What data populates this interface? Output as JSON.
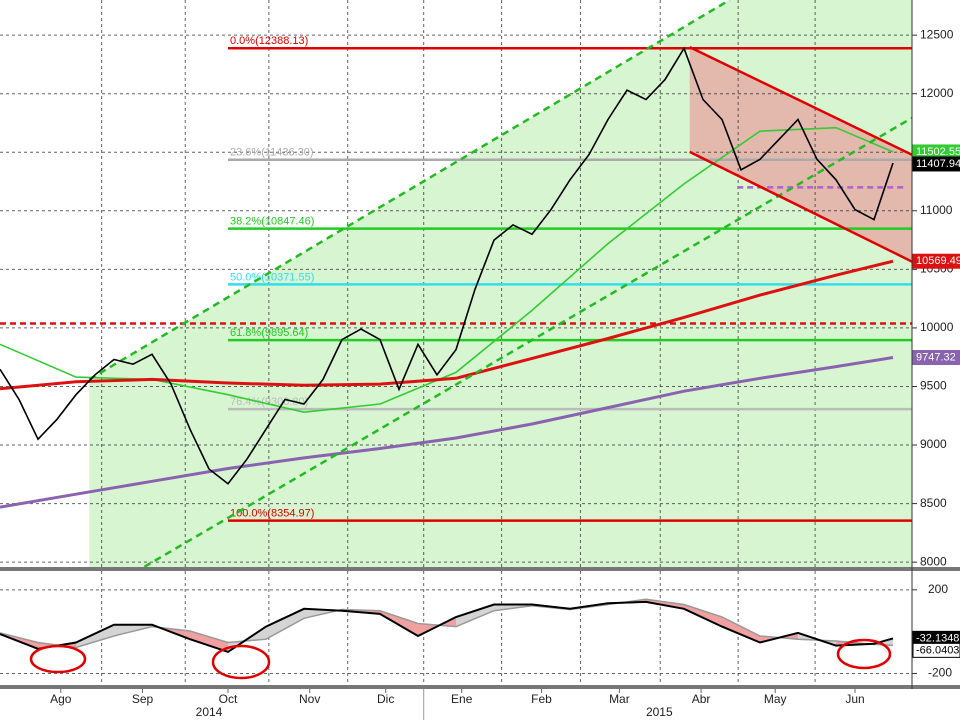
{
  "chart_data": [
    {
      "type": "line",
      "xlim": [
        0,
        48
      ],
      "ylim": [
        7950,
        12800
      ],
      "yticks": [
        8000,
        8500,
        9000,
        9500,
        10000,
        10500,
        11000,
        11500,
        12000,
        12500
      ],
      "grid": true,
      "series": [
        {
          "color": "#000000",
          "x": [
            0,
            1,
            2,
            3,
            4,
            5,
            6,
            7,
            8,
            9,
            10,
            11,
            12,
            13,
            14,
            15,
            16,
            17,
            18,
            19,
            20,
            21,
            22,
            23,
            24,
            25,
            26,
            27,
            28,
            29,
            30,
            31,
            32,
            33,
            34,
            35,
            36,
            37,
            38,
            39,
            40,
            41,
            42,
            43,
            44,
            45,
            46,
            47
          ],
          "values": [
            9647,
            9390,
            9050,
            9220,
            9430,
            9600,
            9730,
            9690,
            9775,
            9520,
            9135,
            8795,
            8670,
            8880,
            9135,
            9390,
            9350,
            9560,
            9900,
            9990,
            9900,
            9475,
            9860,
            9600,
            9815,
            10330,
            10750,
            10880,
            10800,
            11010,
            11265,
            11480,
            11780,
            12030,
            11950,
            12120,
            12388,
            11950,
            11780,
            11350,
            11440,
            11610,
            11780,
            11440,
            11265,
            11010,
            10925,
            11407.94
          ]
        },
        {
          "color": "#33cc33",
          "x": [
            0,
            4,
            8,
            12,
            16,
            20,
            24,
            28,
            32,
            36,
            40,
            44,
            47
          ],
          "values": [
            9860,
            9580,
            9560,
            9430,
            9280,
            9350,
            9620,
            10150,
            10720,
            11230,
            11680,
            11710,
            11502.55
          ]
        },
        {
          "color": "#dd1111",
          "x": [
            0,
            4,
            8,
            12,
            16,
            20,
            24,
            28,
            32,
            36,
            40,
            44,
            47
          ],
          "values": [
            9480,
            9540,
            9560,
            9530,
            9510,
            9520,
            9570,
            9740,
            9910,
            10090,
            10280,
            10450,
            10569.49
          ]
        },
        {
          "color": "#8a63b0",
          "x": [
            0,
            4,
            8,
            12,
            16,
            20,
            24,
            28,
            32,
            36,
            40,
            44,
            47
          ],
          "values": [
            8470,
            8580,
            8690,
            8800,
            8890,
            8970,
            9060,
            9180,
            9320,
            9460,
            9570,
            9670,
            9747.32
          ]
        }
      ],
      "levels_x": [
        12,
        48
      ],
      "levels": [
        {
          "label": "0.0%(12388.13)",
          "value": 12388.13,
          "color": "#e00000"
        },
        {
          "label": "23.6%(11436.30)",
          "value": 11436.3,
          "color": "#aaaaaa"
        },
        {
          "label": "38.2%(10847.46)",
          "value": 10847.46,
          "color": "#22cc22"
        },
        {
          "label": "50.0%(10371.55)",
          "value": 10371.55,
          "color": "#33ddee"
        },
        {
          "label": "61.8%(9895.64)",
          "value": 9895.64,
          "color": "#22cc22"
        },
        {
          "label": "76.4%(9306.80)",
          "value": 9306.8,
          "color": "#bbbbbb"
        },
        {
          "label": "100.0%(8354.97)",
          "value": 8354.97,
          "color": "#e00000"
        }
      ],
      "hlines": [
        {
          "x": [
            0,
            48
          ],
          "values": [
            10038,
            10038
          ],
          "color": "#dd1111"
        },
        {
          "x": [
            38.8,
            47.6
          ],
          "values": [
            11200,
            11200
          ],
          "color": "#b060d0"
        }
      ],
      "channels": [
        {
          "x": [
            4.7,
            38.4
          ],
          "values": [
            9560,
            12800
          ],
          "color": "#22bb22",
          "fill": "#d6f5d0"
        },
        {
          "x": [
            7.6,
            48
          ],
          "values": [
            7960,
            11793
          ],
          "color": "#22bb22"
        },
        {
          "x": [
            36.3,
            48
          ],
          "values": [
            12398,
            11478
          ],
          "color": "#e00000",
          "fill": "#e8a0a0"
        },
        {
          "x": [
            36.3,
            48
          ],
          "values": [
            11503,
            10566
          ],
          "color": "#e00000"
        }
      ],
      "last_values": [
        {
          "value": 11502.55,
          "color": "#33cc33"
        },
        {
          "value": 11407.94,
          "color": "#000000"
        },
        {
          "value": 10569.49,
          "color": "#dd1111"
        },
        {
          "value": 9747.32,
          "color": "#8a63b0"
        }
      ]
    },
    {
      "type": "line",
      "xlim": [
        0,
        48
      ],
      "ylim": [
        -260,
        290
      ],
      "yticks": [
        200,
        -200
      ],
      "grid": true,
      "xticks": [
        {
          "value": 3.2,
          "label": "Ago"
        },
        {
          "value": 7.5,
          "label": "Sep"
        },
        {
          "value": 12,
          "label": "Oct"
        },
        {
          "value": 16.3,
          "label": "Nov"
        },
        {
          "value": 20.3,
          "label": "Dic"
        },
        {
          "value": 24.3,
          "label": "Ene"
        },
        {
          "value": 28.5,
          "label": "Feb"
        },
        {
          "value": 32.6,
          "label": "Mar"
        },
        {
          "value": 36.9,
          "label": "Abr"
        },
        {
          "value": 40.8,
          "label": "May"
        },
        {
          "value": 45,
          "label": "Jun"
        }
      ],
      "year_ticks": [
        {
          "value": 11,
          "label": "2014"
        },
        {
          "value": 34.7,
          "label": "2015"
        }
      ],
      "series": [
        {
          "color": "#000000",
          "x": [
            0,
            2,
            4,
            6,
            8,
            10,
            12,
            14,
            16,
            18,
            20,
            22,
            24,
            26,
            28,
            30,
            32,
            34,
            36,
            38,
            40,
            42,
            44,
            46,
            47
          ],
          "values": [
            -12,
            -82,
            -52,
            33,
            33,
            -36,
            -97,
            24,
            109,
            100,
            85,
            -21,
            70,
            130,
            130,
            109,
            136,
            142,
            109,
            24,
            -52,
            -6,
            -67,
            -58,
            -32.1348
          ]
        },
        {
          "color": "#999999",
          "x": [
            0,
            2,
            4,
            6,
            8,
            10,
            12,
            14,
            16,
            18,
            20,
            22,
            24,
            26,
            28,
            30,
            32,
            34,
            36,
            38,
            40,
            42,
            44,
            46,
            47
          ],
          "values": [
            -6,
            -52,
            -76,
            -21,
            24,
            3,
            -52,
            -36,
            64,
            106,
            100,
            39,
            24,
            100,
            124,
            106,
            130,
            155,
            130,
            70,
            -21,
            -36,
            -45,
            -61,
            -66.0403
          ]
        }
      ],
      "last_values": [
        {
          "value": -32.1348,
          "color": "#000000"
        },
        {
          "value": -66.0403,
          "color": "#ffffff"
        }
      ]
    }
  ]
}
